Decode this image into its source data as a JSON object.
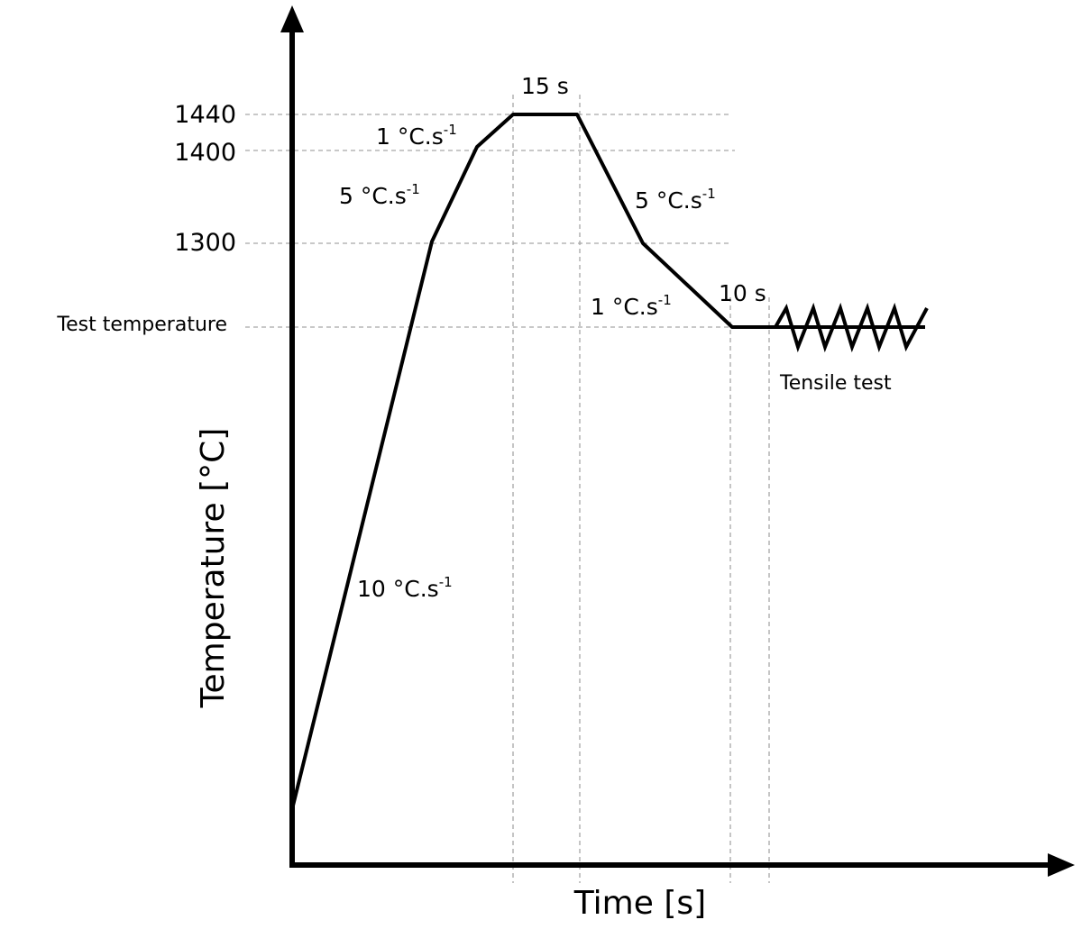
{
  "diagram": {
    "y_axis_title": "Temperature [°C]",
    "x_axis_title": "Time [s]",
    "y_ticks": [
      "1440",
      "1400",
      "1300",
      "Test temperature"
    ],
    "hold_top_label": "15 s",
    "hold_test_label": "10 s",
    "tensile_label": "Tensile test",
    "rates": {
      "heat_10": {
        "value": "10 °C.s",
        "exp": "-1"
      },
      "heat_5": {
        "value": "5 °C.s",
        "exp": "-1"
      },
      "heat_1": {
        "value": "1 °C.s",
        "exp": "-1"
      },
      "cool_5": {
        "value": "5 °C.s",
        "exp": "-1"
      },
      "cool_1": {
        "value": "1 °C.s",
        "exp": "-1"
      }
    }
  }
}
